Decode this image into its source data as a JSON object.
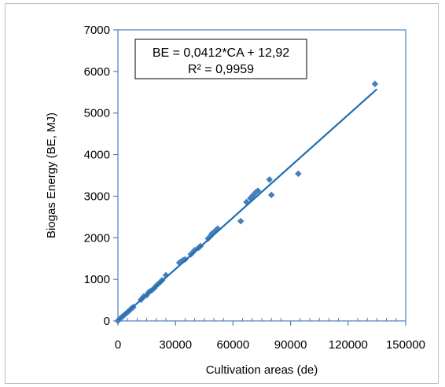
{
  "chart_data": {
    "type": "scatter",
    "xlabel": "Cultivation areas (de)",
    "ylabel": "Biogas Energy (BE, MJ)",
    "xlim": [
      0,
      150000
    ],
    "ylim": [
      0,
      7000
    ],
    "xticks": [
      "0",
      "30000",
      "60000",
      "90000",
      "120000",
      "150000"
    ],
    "yticks": [
      "0",
      "1000",
      "2000",
      "3000",
      "4000",
      "5000",
      "6000",
      "7000"
    ],
    "grid": false,
    "marker_color": "#4a7ebb",
    "trendline_color": "#1f6fb2",
    "annotation": {
      "equation": "BE = 0,0412*CA + 12,92",
      "r2": "R² = 0,9959"
    },
    "trendline": {
      "slope": 0.0412,
      "intercept": 12.92,
      "x_range": [
        0,
        135000
      ]
    },
    "points": [
      [
        0,
        0
      ],
      [
        500,
        30
      ],
      [
        1000,
        50
      ],
      [
        1500,
        70
      ],
      [
        2000,
        90
      ],
      [
        2500,
        110
      ],
      [
        3000,
        130
      ],
      [
        3500,
        150
      ],
      [
        4000,
        170
      ],
      [
        4500,
        190
      ],
      [
        5000,
        210
      ],
      [
        5500,
        230
      ],
      [
        6000,
        250
      ],
      [
        6500,
        270
      ],
      [
        7000,
        300
      ],
      [
        8000,
        330
      ],
      [
        12000,
        510
      ],
      [
        13000,
        560
      ],
      [
        13500,
        590
      ],
      [
        15000,
        620
      ],
      [
        16000,
        690
      ],
      [
        17000,
        720
      ],
      [
        18000,
        750
      ],
      [
        19000,
        790
      ],
      [
        20000,
        850
      ],
      [
        21000,
        890
      ],
      [
        22000,
        930
      ],
      [
        23000,
        980
      ],
      [
        25000,
        1100
      ],
      [
        32000,
        1400
      ],
      [
        33000,
        1430
      ],
      [
        34000,
        1460
      ],
      [
        35000,
        1480
      ],
      [
        38000,
        1600
      ],
      [
        39000,
        1650
      ],
      [
        40000,
        1700
      ],
      [
        42000,
        1760
      ],
      [
        43000,
        1800
      ],
      [
        47000,
        1980
      ],
      [
        48000,
        2030
      ],
      [
        49000,
        2100
      ],
      [
        50000,
        2130
      ],
      [
        51000,
        2180
      ],
      [
        52000,
        2220
      ],
      [
        64000,
        2400
      ],
      [
        67000,
        2860
      ],
      [
        69000,
        2950
      ],
      [
        70000,
        3000
      ],
      [
        71000,
        3050
      ],
      [
        72000,
        3100
      ],
      [
        73000,
        3130
      ],
      [
        79000,
        3400
      ],
      [
        80000,
        3030
      ],
      [
        94000,
        3540
      ],
      [
        134000,
        5700
      ]
    ]
  }
}
